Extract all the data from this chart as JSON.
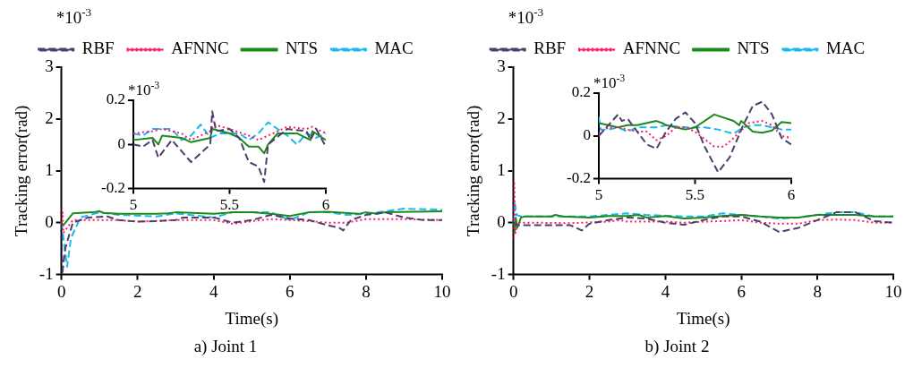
{
  "chart_data": [
    {
      "type": "line",
      "title": "a) Joint 1",
      "xlabel": "Time(s)",
      "ylabel": "Tracking error(rad)",
      "annotations": [
        "*10$^{-3}$"
      ],
      "xlim": [
        0,
        10
      ],
      "xticks": [
        0,
        2,
        4,
        6,
        8,
        10
      ],
      "ylim": [
        -1,
        3
      ],
      "yticks": [
        -1,
        0,
        1,
        2,
        3
      ],
      "grid": false,
      "legend": "top",
      "series": [
        {
          "name": "RBF",
          "color": "#4b3f6b",
          "line_style": "dashed",
          "x": [
            0,
            0.02,
            0.1,
            0.3,
            0.7,
            1.2,
            1.5,
            2,
            2.5,
            3,
            3.2,
            4,
            4.5,
            5,
            5.5,
            6,
            6.5,
            7,
            7.3,
            7.4,
            7.6,
            8,
            8.5,
            9,
            9.5,
            10
          ],
          "values": [
            0,
            -1,
            -0.5,
            0,
            0.1,
            0.12,
            0.05,
            0.02,
            0.03,
            0.05,
            0.1,
            0.1,
            0,
            0.05,
            0.15,
            0.08,
            0.05,
            -0.05,
            -0.1,
            -0.15,
            0.05,
            0.15,
            0.2,
            0.1,
            0.05,
            0.05
          ]
        },
        {
          "name": "AFNNC",
          "color": "#ff1a66",
          "line_style": "dotted",
          "x": [
            0,
            0.03,
            0.05,
            0.3,
            1.5,
            2,
            3,
            4,
            4.5,
            5,
            5.5,
            6,
            6.5,
            7,
            7.5,
            8,
            9,
            10
          ],
          "values": [
            0,
            0.2,
            -0.2,
            0.05,
            0.05,
            0.02,
            0.05,
            0.05,
            -0.02,
            0.03,
            0.07,
            0.05,
            0.03,
            0,
            0,
            0.07,
            0.07,
            0.05
          ]
        },
        {
          "name": "NTS",
          "color": "#1a8a1a",
          "line_style": "solid",
          "x": [
            0,
            0.05,
            0.3,
            0.8,
            1,
            1.1,
            1.5,
            2.5,
            2.8,
            3,
            4,
            4.5,
            5,
            5.5,
            6,
            6.5,
            7,
            7.8,
            8,
            8.3,
            8.5,
            10
          ],
          "values": [
            0,
            -0.05,
            0.18,
            0.2,
            0.22,
            0.19,
            0.17,
            0.17,
            0.18,
            0.2,
            0.17,
            0.2,
            0.2,
            0.17,
            0.13,
            0.2,
            0.21,
            0.17,
            0.2,
            0.17,
            0.2,
            0.22
          ]
        },
        {
          "name": "MAC",
          "color": "#1ab8f0",
          "line_style": "dashed",
          "x": [
            0,
            0.15,
            0.25,
            0.5,
            1,
            1.5,
            2.5,
            3,
            4,
            4.5,
            5.5,
            6,
            6.5,
            7,
            7.5,
            8,
            8.5,
            9,
            10
          ],
          "values": [
            0,
            -0.85,
            -0.3,
            0.1,
            0.2,
            0.15,
            0.12,
            0.18,
            0.1,
            0.2,
            0.2,
            0.05,
            0.2,
            0.2,
            0.15,
            0.17,
            0.22,
            0.27,
            0.25
          ]
        }
      ]
    },
    {
      "type": "line",
      "annotations": [
        "*10$^{-3}$"
      ],
      "xlim": [
        5,
        6
      ],
      "xticks": [
        5,
        5.5,
        6
      ],
      "ylim": [
        -0.2,
        0.2
      ],
      "yticks": [
        -0.2,
        0,
        0.2
      ],
      "grid": false,
      "series": [
        {
          "color": "#4b3f6b",
          "line_style": "dashed",
          "x": [
            5,
            5.05,
            5.1,
            5.13,
            5.2,
            5.3,
            5.4,
            5.41,
            5.43,
            5.5,
            5.55,
            5.6,
            5.65,
            5.68,
            5.7,
            5.8,
            5.9,
            5.92,
            5.95,
            6
          ],
          "values": [
            0,
            -0.01,
            0.02,
            -0.06,
            0.02,
            -0.08,
            0,
            0.15,
            0.06,
            0.07,
            0.03,
            -0.08,
            -0.1,
            -0.17,
            0,
            0.07,
            0.06,
            0.02,
            0.07,
            -0.01
          ]
        },
        {
          "color": "#ff1a66",
          "line_style": "dotted",
          "x": [
            5,
            5.1,
            5.15,
            5.25,
            5.3,
            5.4,
            5.42,
            5.5,
            5.6,
            5.65,
            5.7,
            5.8,
            5.9,
            5.93,
            6
          ],
          "values": [
            0.05,
            0.06,
            0.07,
            0.05,
            0.02,
            0.06,
            0.09,
            0.07,
            0.04,
            0.02,
            0.04,
            0.08,
            0.07,
            0.08,
            0.05
          ]
        },
        {
          "color": "#1a8a1a",
          "line_style": "solid",
          "x": [
            5,
            5.1,
            5.13,
            5.15,
            5.25,
            5.3,
            5.4,
            5.41,
            5.5,
            5.55,
            5.6,
            5.65,
            5.68,
            5.7,
            5.75,
            5.85,
            5.92,
            5.93,
            6
          ],
          "values": [
            0.02,
            0.03,
            0,
            0.04,
            0.03,
            0.01,
            0.03,
            0.07,
            0.05,
            0.03,
            -0.01,
            -0.01,
            -0.04,
            0,
            0.05,
            0.05,
            0.02,
            0.06,
            0.02
          ]
        },
        {
          "color": "#1ab8f0",
          "line_style": "dashed",
          "x": [
            5,
            5.05,
            5.1,
            5.2,
            5.25,
            5.3,
            5.35,
            5.4,
            5.45,
            5.55,
            5.6,
            5.65,
            5.7,
            5.75,
            5.8,
            5.85,
            5.9,
            5.95,
            6
          ],
          "values": [
            0.05,
            0.04,
            0.07,
            0.07,
            0.02,
            0.04,
            0.09,
            0.03,
            0.05,
            0.05,
            0.02,
            0.05,
            0.1,
            0.07,
            0.04,
            0,
            0.05,
            0.03,
            0.05
          ]
        }
      ]
    },
    {
      "type": "line",
      "title": "b) Joint 2",
      "xlabel": "Time(s)",
      "ylabel": "Tracking error(rad)",
      "annotations": [
        "*10$^{-3}$"
      ],
      "xlim": [
        0,
        10
      ],
      "xticks": [
        0,
        2,
        4,
        6,
        8,
        10
      ],
      "ylim": [
        -1,
        3
      ],
      "yticks": [
        -1,
        0,
        1,
        2,
        3
      ],
      "grid": false,
      "legend": "top",
      "series": [
        {
          "name": "RBF",
          "color": "#4b3f6b",
          "line_style": "dashed",
          "x": [
            0,
            0.1,
            0.5,
            1,
            1.5,
            1.8,
            2,
            2.5,
            3,
            3.5,
            4,
            4.5,
            5,
            5.5,
            6,
            6.5,
            7,
            7.5,
            8,
            8.5,
            9,
            9.5,
            10
          ],
          "values": [
            0,
            -0.05,
            -0.05,
            -0.05,
            -0.05,
            -0.15,
            -0.02,
            0.05,
            0.1,
            0.08,
            0,
            -0.04,
            0.05,
            0.12,
            0.12,
            0.02,
            -0.18,
            -0.1,
            0.05,
            0.2,
            0.2,
            0.03,
            0
          ]
        },
        {
          "name": "AFNNC",
          "color": "#ff1a66",
          "line_style": "dotted",
          "x": [
            0,
            0.02,
            0.05,
            0.1,
            0.5,
            1.5,
            2.5,
            2.8,
            3,
            4,
            4.5,
            5,
            5.5,
            6,
            6.5,
            7,
            7.5,
            8,
            8.5,
            9,
            9.5,
            10
          ],
          "values": [
            -0.3,
            0.8,
            -0.2,
            0,
            0,
            -0.01,
            0.02,
            0.05,
            0.02,
            0.02,
            0,
            0.02,
            0.03,
            0.05,
            0,
            -0.02,
            -0.02,
            0.05,
            0.06,
            0.05,
            0,
            0
          ]
        },
        {
          "name": "NTS",
          "color": "#1a8a1a",
          "line_style": "solid",
          "x": [
            0,
            0.03,
            0.06,
            0.1,
            0.2,
            0.3,
            1,
            1.1,
            1.3,
            2,
            2.5,
            3,
            3.3,
            3.5,
            4,
            4.5,
            5,
            5.5,
            6,
            6.5,
            7,
            7.5,
            8,
            8.5,
            9,
            9.5,
            10
          ],
          "values": [
            0,
            -0.2,
            0.1,
            -0.1,
            0.1,
            0.12,
            0.12,
            0.15,
            0.12,
            0.1,
            0.13,
            0.13,
            0.15,
            0.1,
            0.13,
            0.08,
            0.1,
            0.13,
            0.15,
            0.12,
            0.1,
            0.1,
            0.15,
            0.15,
            0.15,
            0.12,
            0.12
          ]
        },
        {
          "name": "MAC",
          "color": "#1ab8f0",
          "line_style": "dashed",
          "x": [
            0,
            0.03,
            0.08,
            0.2,
            1.5,
            2,
            3,
            3.5,
            4.5,
            5,
            5.5,
            6,
            7,
            7.5,
            8,
            8.5,
            9,
            9.5,
            10
          ],
          "values": [
            0,
            0.4,
            0.15,
            0.12,
            0.12,
            0.12,
            0.18,
            0.15,
            0.12,
            0.12,
            0.18,
            0.15,
            0.08,
            0.1,
            0.15,
            0.2,
            0.2,
            0.12,
            0.12
          ]
        }
      ]
    },
    {
      "type": "line",
      "annotations": [
        "*10$^{-3}$"
      ],
      "xlim": [
        5,
        6
      ],
      "xticks": [
        5,
        5.5,
        6
      ],
      "ylim": [
        -0.2,
        0.2
      ],
      "yticks": [
        -0.2,
        0,
        0.2
      ],
      "grid": false,
      "series": [
        {
          "color": "#4b3f6b",
          "line_style": "dashed",
          "x": [
            5,
            5.05,
            5.1,
            5.12,
            5.15,
            5.2,
            5.25,
            5.3,
            5.35,
            5.4,
            5.45,
            5.5,
            5.55,
            5.62,
            5.68,
            5.75,
            5.8,
            5.85,
            5.9,
            5.95,
            6
          ],
          "values": [
            0,
            0.05,
            0.1,
            0.07,
            0.08,
            0.02,
            -0.04,
            -0.06,
            0.02,
            0.08,
            0.11,
            0.06,
            -0.05,
            -0.17,
            -0.1,
            0.05,
            0.14,
            0.16,
            0.1,
            -0.01,
            -0.04
          ]
        },
        {
          "color": "#ff1a66",
          "line_style": "dotted",
          "x": [
            5,
            5.05,
            5.1,
            5.2,
            5.25,
            5.3,
            5.35,
            5.4,
            5.45,
            5.5,
            5.6,
            5.65,
            5.7,
            5.78,
            5.85,
            5.9,
            5.95,
            6
          ],
          "values": [
            0.01,
            0.04,
            0.04,
            0.02,
            0.02,
            -0.02,
            0,
            0.04,
            0.04,
            0.02,
            -0.05,
            -0.05,
            -0.01,
            0.06,
            0.07,
            0.05,
            0,
            -0.01
          ]
        },
        {
          "color": "#1a8a1a",
          "line_style": "solid",
          "x": [
            5,
            5.05,
            5.1,
            5.15,
            5.2,
            5.3,
            5.33,
            5.35,
            5.4,
            5.45,
            5.5,
            5.6,
            5.7,
            5.73,
            5.74,
            5.8,
            5.85,
            5.9,
            5.95,
            6
          ],
          "values": [
            0.06,
            0.05,
            0.04,
            0.05,
            0.05,
            0.07,
            0.06,
            0.05,
            0.04,
            0.03,
            0.04,
            0.1,
            0.07,
            0.05,
            0.07,
            0.02,
            0.015,
            0.025,
            0.065,
            0.06
          ]
        },
        {
          "color": "#1ab8f0",
          "line_style": "dashed",
          "x": [
            5,
            5.01,
            5.05,
            5.1,
            5.15,
            5.2,
            5.3,
            5.35,
            5.45,
            5.55,
            5.62,
            5.7,
            5.75,
            5.8,
            5.85,
            5.9,
            5.95,
            6
          ],
          "values": [
            0.09,
            0.03,
            0.03,
            0.04,
            0.02,
            0.04,
            0.04,
            0.05,
            0.04,
            0.04,
            0.03,
            0.01,
            0.04,
            0.05,
            0.05,
            0.04,
            0.03,
            0.03
          ]
        }
      ]
    }
  ]
}
